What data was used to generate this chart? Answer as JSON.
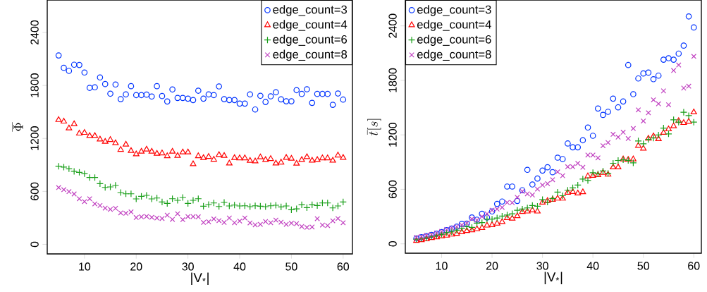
{
  "chart_data": [
    {
      "type": "scatter",
      "xlabel": "|V$_{*}$|",
      "ylabel": "\\overline{\\Phi}",
      "legend": "top right",
      "xlim": [
        2.8,
        61.8
      ],
      "ylim": [
        -108,
        2768
      ],
      "xticks": [
        10,
        20,
        30,
        40,
        50,
        60
      ],
      "yticks": [
        0,
        600,
        1200,
        1800,
        2400
      ],
      "x": [
        5,
        6,
        7,
        8,
        9,
        10,
        11,
        12,
        13,
        14,
        15,
        16,
        17,
        18,
        19,
        20,
        21,
        22,
        23,
        24,
        25,
        26,
        27,
        28,
        29,
        30,
        31,
        32,
        33,
        34,
        35,
        36,
        37,
        38,
        39,
        40,
        41,
        42,
        43,
        44,
        45,
        46,
        47,
        48,
        49,
        50,
        51,
        52,
        53,
        54,
        55,
        56,
        57,
        58,
        59,
        60
      ],
      "series": [
        {
          "name": "edge_count=3",
          "color": "#0033ff",
          "marker": "circle",
          "values": [
            2140,
            2000,
            1965,
            2035,
            2032,
            1947,
            1773,
            1779,
            1891,
            1816,
            1707,
            1811,
            1645,
            1699,
            1792,
            1691,
            1691,
            1696,
            1675,
            1792,
            1680,
            1619,
            1755,
            1659,
            1659,
            1651,
            1635,
            1741,
            1651,
            1699,
            1691,
            1789,
            1645,
            1635,
            1635,
            1595,
            1595,
            1699,
            1528,
            1683,
            1613,
            1677,
            1723,
            1643,
            1621,
            1621,
            1747,
            1704,
            1757,
            1603,
            1704,
            1704,
            1704,
            1581,
            1709,
            1640
          ]
        },
        {
          "name": "edge_count=4",
          "color": "#ff0000",
          "marker": "triangle",
          "values": [
            1410,
            1392,
            1315,
            1363,
            1256,
            1264,
            1229,
            1229,
            1189,
            1163,
            1184,
            1147,
            1072,
            1131,
            1059,
            1021,
            1051,
            1075,
            1051,
            1027,
            1032,
            1000,
            1051,
            1003,
            1043,
            1043,
            909,
            1000,
            979,
            992,
            960,
            1013,
            1003,
            917,
            979,
            976,
            976,
            947,
            941,
            987,
            957,
            968,
            917,
            928,
            981,
            971,
            915,
            957,
            989,
            949,
            957,
            976,
            976,
            949,
            1008,
            981
          ]
        },
        {
          "name": "edge_count=6",
          "color": "#1a9f1a",
          "marker": "plus",
          "values": [
            885,
            875,
            856,
            827,
            816,
            800,
            757,
            757,
            688,
            645,
            651,
            669,
            587,
            573,
            573,
            515,
            544,
            555,
            515,
            525,
            480,
            464,
            517,
            499,
            531,
            464,
            499,
            517,
            432,
            451,
            469,
            429,
            475,
            435,
            445,
            435,
            437,
            427,
            437,
            432,
            427,
            437,
            443,
            424,
            435,
            392,
            403,
            448,
            416,
            448,
            440,
            469,
            469,
            413,
            435,
            480
          ]
        },
        {
          "name": "edge_count=8",
          "color": "#c040c0",
          "marker": "cross",
          "values": [
            643,
            619,
            597,
            571,
            517,
            485,
            517,
            459,
            440,
            411,
            397,
            408,
            357,
            352,
            368,
            304,
            312,
            317,
            307,
            299,
            293,
            331,
            283,
            347,
            280,
            315,
            315,
            312,
            248,
            256,
            288,
            269,
            248,
            299,
            245,
            264,
            299,
            243,
            221,
            227,
            259,
            245,
            275,
            251,
            227,
            240,
            235,
            203,
            192,
            197,
            291,
            219,
            213,
            267,
            293,
            245
          ]
        }
      ]
    },
    {
      "type": "scatter",
      "xlabel": "|V$_{*}$|",
      "ylabel": "\\bar{t}[s]",
      "legend": "top left",
      "xlim": [
        2.8,
        61.5
      ],
      "ylim": [
        -103,
        2685
      ],
      "xticks": [
        10,
        20,
        30,
        40,
        50,
        60
      ],
      "yticks": [
        0,
        600,
        1200,
        1800,
        2400
      ],
      "x": [
        5,
        6,
        7,
        8,
        9,
        10,
        11,
        12,
        13,
        14,
        15,
        16,
        17,
        18,
        19,
        20,
        21,
        22,
        23,
        24,
        25,
        26,
        27,
        28,
        29,
        30,
        31,
        32,
        33,
        34,
        35,
        36,
        37,
        38,
        39,
        40,
        41,
        42,
        43,
        44,
        45,
        46,
        47,
        48,
        49,
        50,
        51,
        52,
        53,
        54,
        55,
        56,
        57,
        58,
        59,
        60
      ],
      "series": [
        {
          "name": "edge_count=3",
          "color": "#0033ff",
          "marker": "circle",
          "values": [
            60,
            72,
            85,
            98,
            111,
            129,
            150,
            168,
            189,
            220,
            223,
            290,
            266,
            331,
            290,
            357,
            440,
            466,
            631,
            631,
            473,
            590,
            815,
            654,
            719,
            807,
            843,
            789,
            949,
            934,
            1105,
            1063,
            1063,
            1141,
            1281,
            1190,
            1490,
            1420,
            1454,
            1599,
            1503,
            1568,
            1969,
            1648,
            1821,
            1876,
            1886,
            1813,
            1852,
            2028,
            2044,
            2028,
            2095,
            2183,
            2504,
            2383
          ]
        },
        {
          "name": "edge_count=4",
          "color": "#ff0000",
          "marker": "triangle",
          "values": [
            34,
            41,
            52,
            65,
            72,
            85,
            91,
            103,
            111,
            129,
            142,
            150,
            163,
            176,
            202,
            207,
            223,
            241,
            285,
            279,
            305,
            352,
            357,
            370,
            357,
            455,
            473,
            486,
            499,
            499,
            564,
            572,
            556,
            569,
            745,
            750,
            758,
            784,
            763,
            843,
            843,
            931,
            926,
            931,
            1081,
            1050,
            1159,
            1185,
            1154,
            1224,
            1262,
            1296,
            1353,
            1332,
            1345,
            1449
          ]
        },
        {
          "name": "edge_count=6",
          "color": "#1a9f1a",
          "marker": "plus",
          "values": [
            52,
            60,
            67,
            83,
            93,
            106,
            124,
            132,
            150,
            171,
            189,
            181,
            228,
            233,
            272,
            272,
            285,
            305,
            318,
            331,
            370,
            383,
            396,
            422,
            414,
            486,
            460,
            499,
            569,
            530,
            590,
            616,
            647,
            714,
            698,
            784,
            771,
            802,
            776,
            887,
            918,
            926,
            918,
            892,
            1133,
            1102,
            1150,
            1165,
            1198,
            1275,
            1211,
            1366,
            1340,
            1449,
            1412,
            1340
          ]
        },
        {
          "name": "edge_count=8",
          "color": "#c040c0",
          "marker": "cross",
          "values": [
            72,
            80,
            93,
            103,
            119,
            137,
            158,
            176,
            189,
            207,
            228,
            274,
            261,
            300,
            331,
            370,
            383,
            401,
            455,
            453,
            512,
            577,
            551,
            538,
            603,
            647,
            662,
            706,
            792,
            750,
            849,
            849,
            887,
            843,
            978,
            978,
            947,
            1081,
            1115,
            1206,
            1175,
            1229,
            1159,
            1270,
            1475,
            1353,
            1443,
            1586,
            1542,
            1684,
            1531,
            1909,
            1969,
            1715,
            1736,
            2064
          ]
        }
      ]
    }
  ]
}
